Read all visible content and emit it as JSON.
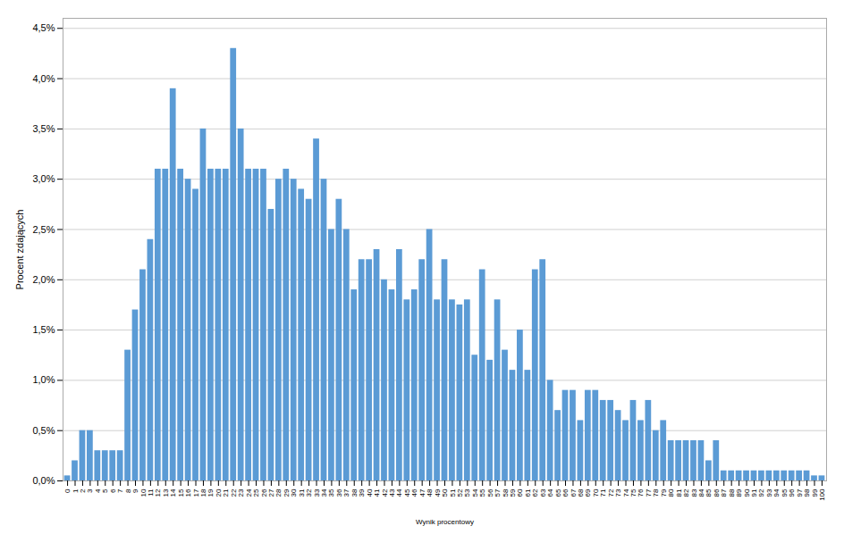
{
  "chart_data": {
    "type": "bar",
    "xlabel": "Wynik procentowy",
    "ylabel": "Procent zdających",
    "color": "#5B9BD5",
    "grid": true,
    "ylim": [
      0,
      0.046
    ],
    "yticks": [
      {
        "value": 0.0,
        "label": "0,0%"
      },
      {
        "value": 0.005,
        "label": "0,5%"
      },
      {
        "value": 0.01,
        "label": "1,0%"
      },
      {
        "value": 0.015,
        "label": "1,5%"
      },
      {
        "value": 0.02,
        "label": "2,0%"
      },
      {
        "value": 0.025,
        "label": "2,5%"
      },
      {
        "value": 0.03,
        "label": "3,0%"
      },
      {
        "value": 0.035,
        "label": "3,5%"
      },
      {
        "value": 0.04,
        "label": "4,0%"
      },
      {
        "value": 0.045,
        "label": "4,5%"
      }
    ],
    "categories": [
      0,
      1,
      2,
      3,
      4,
      5,
      6,
      7,
      8,
      9,
      10,
      11,
      12,
      13,
      14,
      15,
      16,
      17,
      18,
      19,
      20,
      21,
      22,
      23,
      24,
      25,
      26,
      27,
      28,
      29,
      30,
      31,
      32,
      33,
      34,
      35,
      36,
      37,
      38,
      39,
      40,
      41,
      42,
      43,
      44,
      45,
      46,
      47,
      48,
      49,
      50,
      51,
      52,
      53,
      54,
      55,
      56,
      57,
      58,
      59,
      60,
      61,
      62,
      63,
      64,
      65,
      66,
      67,
      68,
      69,
      70,
      71,
      72,
      73,
      74,
      75,
      76,
      77,
      78,
      79,
      80,
      81,
      82,
      83,
      84,
      85,
      86,
      87,
      88,
      89,
      90,
      91,
      92,
      93,
      94,
      95,
      96,
      97,
      98,
      99,
      100
    ],
    "values": [
      0.0005,
      0.002,
      0.005,
      0.005,
      0.003,
      0.003,
      0.003,
      0.003,
      0.013,
      0.017,
      0.021,
      0.024,
      0.031,
      0.031,
      0.039,
      0.031,
      0.03,
      0.029,
      0.035,
      0.031,
      0.031,
      0.031,
      0.043,
      0.035,
      0.031,
      0.031,
      0.031,
      0.027,
      0.03,
      0.031,
      0.03,
      0.029,
      0.028,
      0.034,
      0.03,
      0.025,
      0.028,
      0.025,
      0.019,
      0.022,
      0.022,
      0.023,
      0.02,
      0.019,
      0.023,
      0.018,
      0.019,
      0.022,
      0.025,
      0.018,
      0.022,
      0.018,
      0.0175,
      0.018,
      0.0125,
      0.021,
      0.012,
      0.018,
      0.013,
      0.011,
      0.015,
      0.011,
      0.021,
      0.022,
      0.01,
      0.007,
      0.009,
      0.009,
      0.006,
      0.009,
      0.009,
      0.008,
      0.008,
      0.007,
      0.006,
      0.008,
      0.006,
      0.008,
      0.005,
      0.006,
      0.004,
      0.004,
      0.004,
      0.004,
      0.004,
      0.002,
      0.004,
      0.001,
      0.001,
      0.001,
      0.001,
      0.001,
      0.001,
      0.001,
      0.001,
      0.001,
      0.001,
      0.001,
      0.001,
      0.0005,
      0.0005
    ]
  }
}
